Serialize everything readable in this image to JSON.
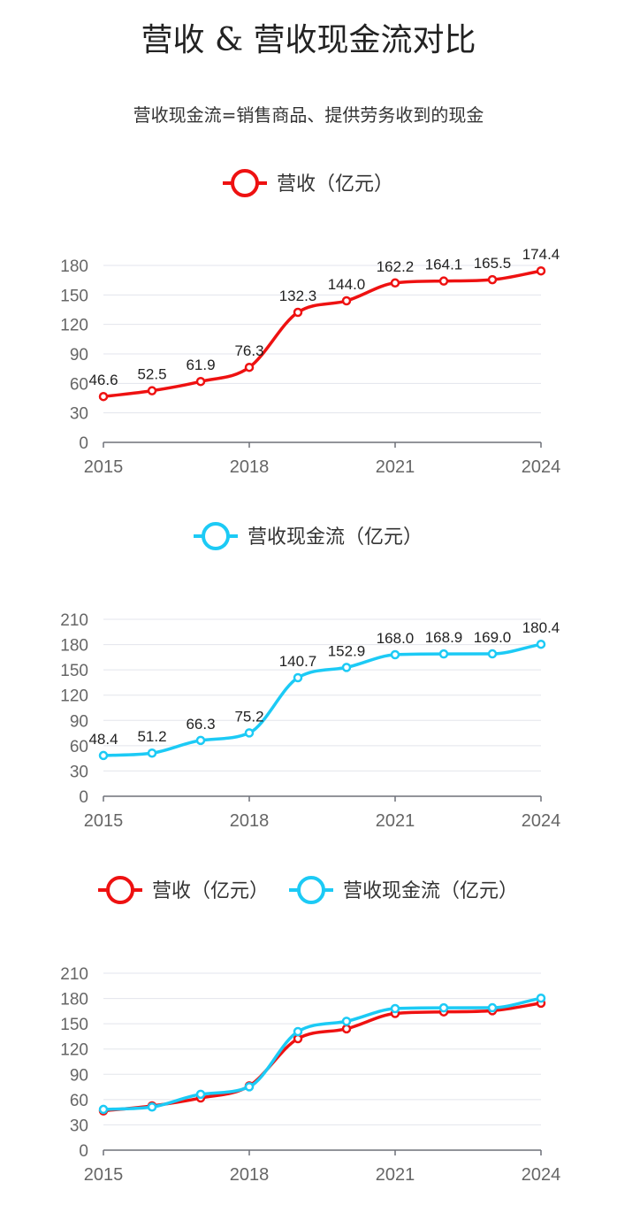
{
  "title": "营收 & 营收现金流对比",
  "subtitle": "营收现金流=销售商品、提供劳务收到的现金",
  "colors": {
    "revenue": "#ee1111",
    "cashflow": "#1ccaf5",
    "grid": "#e3e5ec",
    "axis": "#6e7079"
  },
  "chart_data": [
    {
      "type": "line",
      "x": [
        2015,
        2016,
        2017,
        2018,
        2019,
        2020,
        2021,
        2022,
        2023,
        2024
      ],
      "xticks": [
        "2015",
        "2018",
        "2021",
        "2024"
      ],
      "ylim": [
        0,
        180
      ],
      "yticks": [
        0,
        30,
        60,
        90,
        120,
        150,
        180
      ],
      "legend_position": "top-center",
      "series": [
        {
          "name": "营收（亿元）",
          "color": "#ee1111",
          "values": [
            46.6,
            52.5,
            61.9,
            76.3,
            132.3,
            144.0,
            162.2,
            164.1,
            165.5,
            174.4
          ],
          "labels": [
            "46.6",
            "52.5",
            "61.9",
            "76.3",
            "132.3",
            "144.0",
            "162.2",
            "164.1",
            "165.5",
            "174.4"
          ]
        }
      ]
    },
    {
      "type": "line",
      "x": [
        2015,
        2016,
        2017,
        2018,
        2019,
        2020,
        2021,
        2022,
        2023,
        2024
      ],
      "xticks": [
        "2015",
        "2018",
        "2021",
        "2024"
      ],
      "ylim": [
        0,
        210
      ],
      "yticks": [
        0,
        30,
        60,
        90,
        120,
        150,
        180,
        210
      ],
      "legend_position": "top-center",
      "series": [
        {
          "name": "营收现金流（亿元）",
          "color": "#1ccaf5",
          "values": [
            48.4,
            51.2,
            66.3,
            75.2,
            140.7,
            152.9,
            168.0,
            168.9,
            169.0,
            180.4
          ],
          "labels": [
            "48.4",
            "51.2",
            "66.3",
            "75.2",
            "140.7",
            "152.9",
            "168.0",
            "168.9",
            "169.0",
            "180.4"
          ]
        }
      ]
    },
    {
      "type": "line",
      "x": [
        2015,
        2016,
        2017,
        2018,
        2019,
        2020,
        2021,
        2022,
        2023,
        2024
      ],
      "xticks": [
        "2015",
        "2018",
        "2021",
        "2024"
      ],
      "ylim": [
        0,
        210
      ],
      "yticks": [
        0,
        30,
        60,
        90,
        120,
        150,
        180,
        210
      ],
      "legend_position": "top-center",
      "series": [
        {
          "name": "营收（亿元）",
          "color": "#ee1111",
          "values": [
            46.6,
            52.5,
            61.9,
            76.3,
            132.3,
            144.0,
            162.2,
            164.1,
            165.5,
            174.4
          ]
        },
        {
          "name": "营收现金流（亿元）",
          "color": "#1ccaf5",
          "values": [
            48.4,
            51.2,
            66.3,
            75.2,
            140.7,
            152.9,
            168.0,
            168.9,
            169.0,
            180.4
          ]
        }
      ]
    }
  ]
}
